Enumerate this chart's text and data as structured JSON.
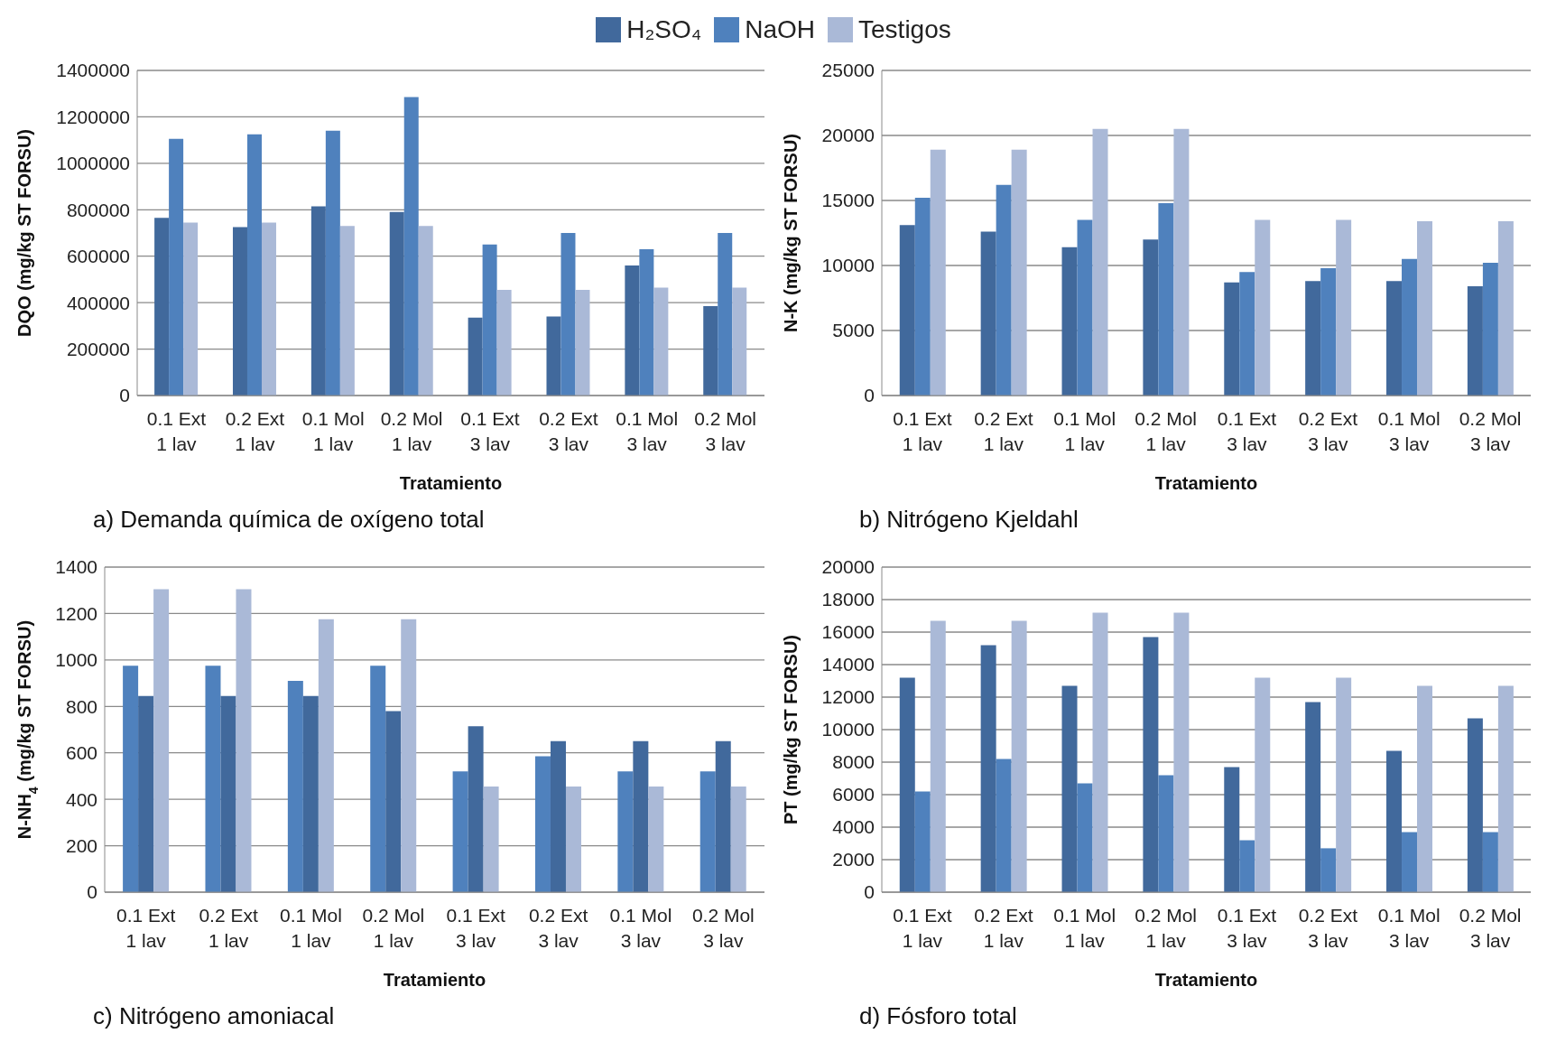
{
  "chart_data": [
    {
      "type": "bar",
      "title": "a) Demanda química de oxígeno total",
      "xlabel": "Tratamiento",
      "ylabel": "DQO (mg/kg ST FORSU)",
      "categories": [
        "0.1 Ext 1 lav",
        "0.2 Ext 1 lav",
        "0.1 Mol 1 lav",
        "0.2 Mol 1 lav",
        "0.1 Ext 3 lav",
        "0.2 Ext 3 lav",
        "0.1 Mol 3 lav",
        "0.2 Mol 3 lav"
      ],
      "series": [
        {
          "name": "H₂SO₄",
          "color": "#41699c",
          "values": [
            765000,
            725000,
            815000,
            790000,
            335000,
            340000,
            560000,
            385000
          ]
        },
        {
          "name": "NaOH",
          "color": "#4f81bd",
          "values": [
            1105000,
            1125000,
            1140000,
            1285000,
            650000,
            700000,
            630000,
            700000
          ]
        },
        {
          "name": "Testigos",
          "color": "#aab9d7",
          "values": [
            745000,
            745000,
            730000,
            730000,
            455000,
            455000,
            465000,
            465000
          ]
        }
      ],
      "ylim": [
        0,
        1400000
      ],
      "yticks": [
        0,
        200000,
        400000,
        600000,
        800000,
        1000000,
        1200000,
        1400000
      ],
      "grid": "y",
      "legend": "top"
    },
    {
      "type": "bar",
      "title": "b) Nitrógeno Kjeldahl",
      "xlabel": "Tratamiento",
      "ylabel": "N-K  (mg/kg ST FORSU)",
      "categories": [
        "0.1 Ext 1 lav",
        "0.2 Ext 1 lav",
        "0.1 Mol 1 lav",
        "0.2 Mol 1 lav",
        "0.1 Ext 3 lav",
        "0.2 Ext 3 lav",
        "0.1 Mol 3 lav",
        "0.2 Mol 3 lav"
      ],
      "series": [
        {
          "color": "#41699c",
          "values": [
            13100,
            12600,
            11400,
            12000,
            8700,
            8800,
            8800,
            8400
          ]
        },
        {
          "color": "#4f81bd",
          "values": [
            15200,
            16200,
            13500,
            14800,
            9500,
            9800,
            10500,
            10200
          ]
        },
        {
          "color": "#aab9d7",
          "values": [
            18900,
            18900,
            20500,
            20500,
            13500,
            13500,
            13400,
            13400
          ]
        }
      ],
      "ylim": [
        0,
        25000
      ],
      "yticks": [
        0,
        5000,
        10000,
        15000,
        20000,
        25000
      ],
      "grid": "y"
    },
    {
      "type": "bar",
      "title": "c) Nitrógeno amoniacal",
      "xlabel": "Tratamiento",
      "ylabel": "N-NH$_{4}$ (mg/kg ST FORSU)",
      "categories": [
        "0.1 Ext 1 lav",
        "0.2 Ext 1 lav",
        "0.1 Mol 1 lav",
        "0.2 Mol 1 lav",
        "0.1 Ext 3 lav",
        "0.2 Ext 3 lav",
        "0.1 Mol 3 lav",
        "0.2 Mol 3 lav"
      ],
      "series": [
        {
          "color": "#4f81bd",
          "values": [
            975,
            975,
            910,
            975,
            520,
            585,
            520,
            520
          ]
        },
        {
          "color": "#41699c",
          "values": [
            845,
            845,
            845,
            780,
            715,
            650,
            650,
            650
          ]
        },
        {
          "color": "#aab9d7",
          "values": [
            1305,
            1305,
            1175,
            1175,
            455,
            455,
            455,
            455
          ]
        }
      ],
      "ylim": [
        0,
        1400
      ],
      "yticks": [
        0,
        200,
        400,
        600,
        800,
        1000,
        1200,
        1400
      ],
      "grid": "y"
    },
    {
      "type": "bar",
      "title": "d) Fósforo total",
      "xlabel": "Tratamiento",
      "ylabel": "PT (mg/kg ST FORSU)",
      "categories": [
        "0.1 Ext 1 lav",
        "0.2 Ext 1 lav",
        "0.1 Mol 1 lav",
        "0.2 Mol 1 lav",
        "0.1 Ext 3 lav",
        "0.2 Ext 3 lav",
        "0.1 Mol 3 lav",
        "0.2 Mol 3 lav"
      ],
      "series": [
        {
          "color": "#41699c",
          "values": [
            13200,
            15200,
            12700,
            15700,
            7700,
            11700,
            8700,
            10700
          ]
        },
        {
          "color": "#4f81bd",
          "values": [
            6200,
            8200,
            6700,
            7200,
            3200,
            2700,
            3700,
            3700
          ]
        },
        {
          "color": "#aab9d7",
          "values": [
            16700,
            16700,
            17200,
            17200,
            13200,
            13200,
            12700,
            12700
          ]
        }
      ],
      "ylim": [
        0,
        20000
      ],
      "yticks": [
        0,
        2000,
        4000,
        6000,
        8000,
        10000,
        12000,
        14000,
        16000,
        18000,
        20000
      ],
      "grid": "y"
    }
  ]
}
